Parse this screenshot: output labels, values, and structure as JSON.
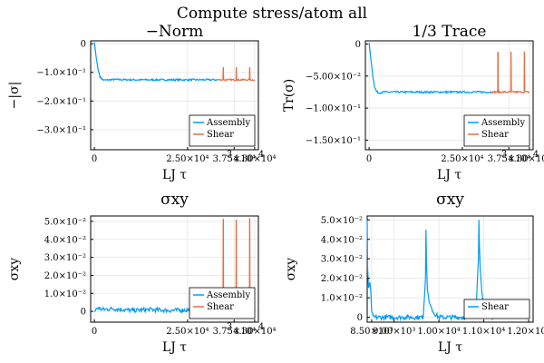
{
  "figure": {
    "suptitle": "Compute stress/atom all"
  },
  "colors": {
    "assembly": "#009AFA",
    "shear": "#E26F46",
    "grid": "#e6e6e6",
    "axis": "#000000"
  },
  "chart_data": [
    {
      "type": "line",
      "title": "−Norm",
      "xlabel": "LJ τ",
      "ylabel": "−|σ|",
      "xlim": [
        -1000,
        44000
      ],
      "ylim": [
        -0.37,
        0.01
      ],
      "xticks": [
        0,
        25000,
        37500,
        43000
      ],
      "xtick_labels": [
        "0",
        "2.50×10⁴",
        "3.75×10⁴",
        "4.30×10⁴"
      ],
      "xtick_overlap_labels": [
        "3",
        "4"
      ],
      "yticks": [
        0,
        -0.1,
        -0.2,
        -0.3
      ],
      "ytick_labels": [
        "0",
        "−1.0×10⁻¹",
        "−2.0×10⁻¹",
        "−3.0×10⁻¹"
      ],
      "legend": {
        "position": "bottom-right",
        "entries": [
          "Assembly",
          "Shear"
        ]
      },
      "series": [
        {
          "name": "Assembly",
          "color": "#009AFA",
          "x": [
            0,
            500,
            1000,
            1500,
            2000,
            2500,
            3000,
            4000,
            6000,
            10000,
            20000,
            30000,
            33000
          ],
          "y": [
            0.005,
            -0.05,
            -0.09,
            -0.115,
            -0.123,
            -0.127,
            -0.127,
            -0.126,
            -0.125,
            -0.126,
            -0.126,
            -0.126,
            -0.126
          ],
          "noise": 0.003
        },
        {
          "name": "Shear",
          "color": "#E26F46",
          "x": [
            33000,
            34500,
            34550,
            34600,
            34650,
            36500,
            38000,
            38050,
            38100,
            38150,
            40000,
            41600,
            41650,
            41700,
            41750,
            43000
          ],
          "y": [
            -0.126,
            -0.126,
            -0.082,
            -0.082,
            -0.126,
            -0.126,
            -0.126,
            -0.082,
            -0.082,
            -0.126,
            -0.126,
            -0.126,
            -0.082,
            -0.082,
            -0.126,
            -0.126
          ],
          "noise": 0.003
        }
      ]
    },
    {
      "type": "line",
      "title": "1/3 Trace",
      "xlabel": "LJ τ",
      "ylabel": "Tr(σ)",
      "xlim": [
        -1000,
        44000
      ],
      "ylim": [
        -0.165,
        0.005
      ],
      "xticks": [
        0,
        25000,
        37500,
        43000
      ],
      "xtick_labels": [
        "0",
        "2.50×10⁴",
        "3.75×10⁴",
        "4.30×10⁴"
      ],
      "xtick_overlap_labels": [
        "3",
        "4"
      ],
      "yticks": [
        0,
        -0.05,
        -0.1,
        -0.15
      ],
      "ytick_labels": [
        "0",
        "−5.00×10⁻²",
        "−1.00×10⁻¹",
        "−1.50×10⁻¹"
      ],
      "legend": {
        "position": "bottom-right",
        "entries": [
          "Assembly",
          "Shear"
        ]
      },
      "series": [
        {
          "name": "Assembly",
          "color": "#009AFA",
          "x": [
            0,
            500,
            1000,
            1500,
            2000,
            2500,
            3000,
            4000,
            6000,
            10000,
            20000,
            30000,
            33000
          ],
          "y": [
            0.002,
            -0.025,
            -0.05,
            -0.068,
            -0.074,
            -0.076,
            -0.076,
            -0.075,
            -0.075,
            -0.075,
            -0.075,
            -0.075,
            -0.075
          ],
          "noise": 0.0015
        },
        {
          "name": "Shear",
          "color": "#E26F46",
          "x": [
            33000,
            34500,
            34550,
            34600,
            34650,
            36500,
            38000,
            38050,
            38100,
            38150,
            40000,
            41600,
            41650,
            41700,
            41750,
            43000
          ],
          "y": [
            -0.075,
            -0.075,
            -0.013,
            -0.013,
            -0.075,
            -0.075,
            -0.075,
            -0.013,
            -0.013,
            -0.075,
            -0.075,
            -0.075,
            -0.013,
            -0.013,
            -0.075,
            -0.075
          ],
          "noise": 0.0015
        }
      ]
    },
    {
      "type": "line",
      "title": "σxy",
      "xlabel": "LJ τ",
      "ylabel": "σxy",
      "xlim": [
        -1000,
        44000
      ],
      "ylim": [
        -0.006,
        0.053
      ],
      "xticks": [
        0,
        25000,
        37500,
        43000
      ],
      "xtick_labels": [
        "0",
        "2.50×10⁴",
        "3.75×10⁴",
        "4.30×10⁴"
      ],
      "xtick_overlap_labels": [
        "3",
        "4"
      ],
      "yticks": [
        0,
        0.01,
        0.02,
        0.03,
        0.04,
        0.05
      ],
      "ytick_labels": [
        "0",
        "1.0×10⁻²",
        "2.0×10⁻²",
        "3.0×10⁻²",
        "4.0×10⁻²",
        "5.0×10⁻²"
      ],
      "legend": {
        "position": "bottom-right",
        "entries": [
          "Assembly",
          "Shear"
        ]
      },
      "series": [
        {
          "name": "Assembly",
          "color": "#009AFA",
          "x": [
            0,
            1000,
            2000,
            5000,
            10000,
            15000,
            20000,
            25000,
            30000,
            33000
          ],
          "y": [
            0.0,
            0.002,
            0.001,
            0.0015,
            0.0005,
            0.001,
            0.0005,
            0.0008,
            0.0012,
            0.001
          ],
          "noise": 0.0012
        },
        {
          "name": "Shear",
          "color": "#E26F46",
          "x": [
            33000,
            34500,
            34550,
            34600,
            34650,
            36500,
            38000,
            38050,
            38100,
            38150,
            40000,
            41600,
            41650,
            41700,
            41750,
            43000
          ],
          "y": [
            0.001,
            0.001,
            0.051,
            0.051,
            0.001,
            0.001,
            0.001,
            0.051,
            0.051,
            0.001,
            0.001,
            0.001,
            0.051,
            0.051,
            0.001,
            0.001
          ],
          "noise": 0.0012
        }
      ]
    },
    {
      "type": "line",
      "title": "σxy",
      "xlabel": "LJ τ",
      "ylabel": "σxy",
      "xlim": [
        8400,
        12100
      ],
      "ylim": [
        -0.0025,
        0.052
      ],
      "xticks": [
        8500,
        9000,
        10000,
        11000,
        12000
      ],
      "xtick_labels": [
        "8.50×10³",
        "9.00×10³",
        "1.00×10⁴",
        "1.10×10⁴",
        "1.20×10⁴"
      ],
      "yticks": [
        0,
        0.01,
        0.02,
        0.03,
        0.04,
        0.05
      ],
      "ytick_labels": [
        "0",
        "1.0×10⁻²",
        "2.0×10⁻²",
        "3.0×10⁻²",
        "4.0×10⁻²",
        "5.0×10⁻²"
      ],
      "legend": {
        "position": "bottom-right",
        "entries": [
          "Shear"
        ]
      },
      "series": [
        {
          "name": "Shear",
          "color": "#009AFA",
          "x": [
            8400,
            8410,
            8430,
            8460,
            8480,
            8500,
            8550,
            8600,
            9000,
            9500,
            9650,
            9700,
            9710,
            9720,
            9740,
            9780,
            9850,
            9900,
            10000,
            10300,
            10700,
            10830,
            10880,
            10890,
            10900,
            10920,
            10960,
            11000,
            11050,
            11150,
            11200
          ],
          "y": [
            0.05,
            0.025,
            0.015,
            0.018,
            0.013,
            0.003,
            0.0,
            0.0,
            0.0,
            0.0,
            0.0,
            0.02,
            0.045,
            0.03,
            0.015,
            0.008,
            0.004,
            0.002,
            0.0,
            0.0,
            0.0,
            0.005,
            0.03,
            0.05,
            0.04,
            0.025,
            0.012,
            0.006,
            0.003,
            0.001,
            0.0
          ],
          "noise": 0.0012
        }
      ]
    }
  ]
}
